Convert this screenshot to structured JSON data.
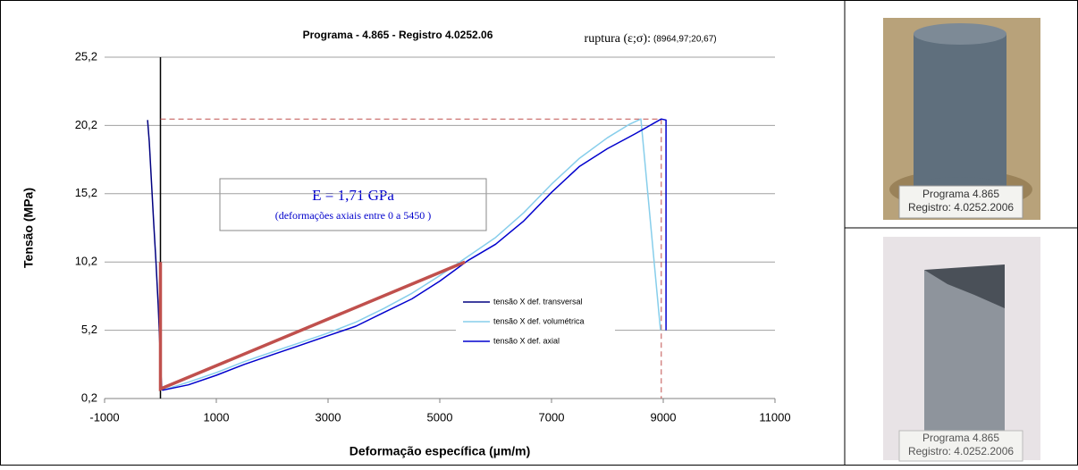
{
  "chart_data": {
    "type": "line",
    "title": "Programa - 4.865 - Registro  4.0252.06",
    "x_label": "Deformação específica (µm/m)",
    "y_label": "Tensão (MPa)",
    "rupture_label": "ruptura (ε;σ):",
    "rupture_value_label": "(8964,97;20,67)",
    "rupture": {
      "x": 8964.97,
      "y": 20.67,
      "color": "#c0504d"
    },
    "modulus_label": "E = 1,71 GPa",
    "modulus_note": "(deformações axiais entre 0 a 5450 )",
    "fit_line": {
      "x": [
        0,
        0,
        5450
      ],
      "values": [
        10.2,
        0.9,
        10.2
      ],
      "color": "#c0504d"
    },
    "xlim": [
      -1000,
      11000
    ],
    "xticks": [
      -1000,
      1000,
      3000,
      5000,
      7000,
      9000,
      11000
    ],
    "ylim": [
      0.2,
      25.2
    ],
    "yticks": [
      {
        "value": 0.2,
        "label": "0,2"
      },
      {
        "value": 5.2,
        "label": "5,2"
      },
      {
        "value": 10.2,
        "label": "10,2"
      },
      {
        "value": 15.2,
        "label": "15,2"
      },
      {
        "value": 20.2,
        "label": "20,2"
      },
      {
        "value": 25.2,
        "label": "25,2"
      }
    ],
    "grid": true,
    "series": [
      {
        "name": "tensão X def. transversal",
        "color": "#000080",
        "x": [
          -230,
          -200,
          -160,
          -120,
          -80,
          -40,
          -10,
          10,
          20,
          30
        ],
        "values": [
          20.6,
          19,
          16,
          13,
          10.2,
          7,
          4,
          2,
          1.1,
          0.8
        ]
      },
      {
        "name": "tensão X def. volumétrica",
        "color": "#87ceeb",
        "x": [
          30,
          500,
          1000,
          1500,
          2000,
          2500,
          3000,
          3500,
          4000,
          4500,
          5000,
          5500,
          6000,
          6500,
          7000,
          7500,
          8000,
          8400,
          8600,
          8950
        ],
        "values": [
          0.8,
          1.4,
          2.1,
          2.9,
          3.6,
          4.3,
          5.0,
          5.8,
          6.8,
          7.9,
          9.2,
          10.6,
          12.0,
          13.8,
          15.9,
          17.8,
          19.3,
          20.3,
          20.67,
          5.2
        ]
      },
      {
        "name": "tensão X def. axial",
        "color": "#0000cd",
        "x": [
          30,
          500,
          1000,
          1500,
          2000,
          2500,
          3000,
          3500,
          4000,
          4500,
          5000,
          5500,
          6000,
          6500,
          7000,
          7500,
          8000,
          8500,
          8964.97,
          9050,
          9050
        ],
        "values": [
          0.8,
          1.2,
          1.9,
          2.7,
          3.4,
          4.1,
          4.8,
          5.5,
          6.5,
          7.5,
          8.8,
          10.3,
          11.5,
          13.2,
          15.3,
          17.2,
          18.5,
          19.6,
          20.67,
          20.6,
          5.2
        ]
      }
    ]
  },
  "photos": [
    {
      "caption": [
        "Programa 4.865",
        "Registro: 4.0252.2006"
      ]
    },
    {
      "caption": [
        "Programa 4.865",
        "Registro: 4.0252.2006"
      ]
    }
  ]
}
